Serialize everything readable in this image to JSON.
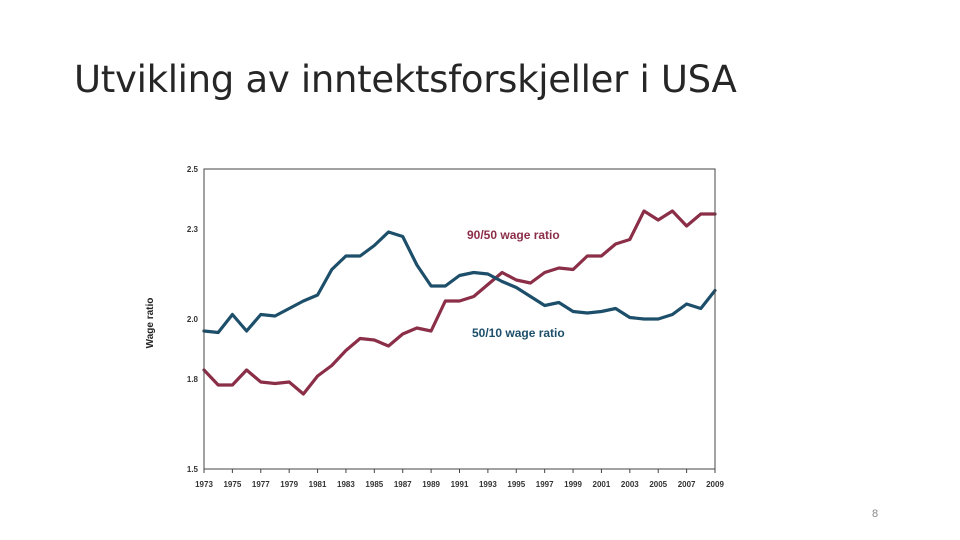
{
  "slide": {
    "title": "Utvikling av inntektsforskjeller i USA",
    "page_number": "8"
  },
  "chart_data": {
    "type": "line",
    "title": "",
    "xlabel": "",
    "ylabel": "Wage ratio",
    "xlim": [
      1973,
      2009
    ],
    "ylim": [
      1.5,
      2.5
    ],
    "yticks": [
      1.5,
      1.8,
      2.0,
      2.3,
      2.5
    ],
    "yticklabels": [
      "1.5",
      "1.8",
      "2.0",
      "2.3",
      "2.5"
    ],
    "xticks": [
      "1973",
      "1975",
      "1977",
      "1979",
      "1981",
      "1983",
      "1985",
      "1987",
      "1989",
      "1991",
      "1993",
      "1995",
      "1997",
      "1999",
      "2001",
      "2003",
      "2005",
      "2007",
      "2009"
    ],
    "grid": false,
    "x": [
      1973,
      1974,
      1975,
      1976,
      1977,
      1978,
      1979,
      1980,
      1981,
      1982,
      1983,
      1984,
      1985,
      1986,
      1987,
      1988,
      1989,
      1990,
      1991,
      1992,
      1993,
      1994,
      1995,
      1996,
      1997,
      1998,
      1999,
      2000,
      2001,
      2002,
      2003,
      2004,
      2005,
      2006,
      2007,
      2008,
      2009
    ],
    "series": [
      {
        "name": "90/50 wage ratio",
        "color": "#8b2e47",
        "values": [
          1.83,
          1.78,
          1.78,
          1.83,
          1.79,
          1.785,
          1.79,
          1.75,
          1.81,
          1.845,
          1.895,
          1.935,
          1.93,
          1.91,
          1.95,
          1.97,
          1.96,
          2.06,
          2.06,
          2.075,
          2.115,
          2.155,
          2.13,
          2.12,
          2.155,
          2.17,
          2.165,
          2.21,
          2.21,
          2.25,
          2.265,
          2.36,
          2.33,
          2.36,
          2.31,
          2.35,
          2.35
        ]
      },
      {
        "name": "50/10 wage ratio",
        "color": "#1d4f6b",
        "values": [
          1.96,
          1.955,
          2.015,
          1.96,
          2.015,
          2.01,
          2.035,
          2.06,
          2.08,
          2.165,
          2.21,
          2.21,
          2.245,
          2.29,
          2.275,
          2.18,
          2.11,
          2.11,
          2.145,
          2.155,
          2.15,
          2.125,
          2.105,
          2.075,
          2.045,
          2.055,
          2.025,
          2.02,
          2.025,
          2.035,
          2.005,
          2.0,
          2.0,
          2.015,
          2.05,
          2.035,
          2.095
        ]
      }
    ]
  }
}
